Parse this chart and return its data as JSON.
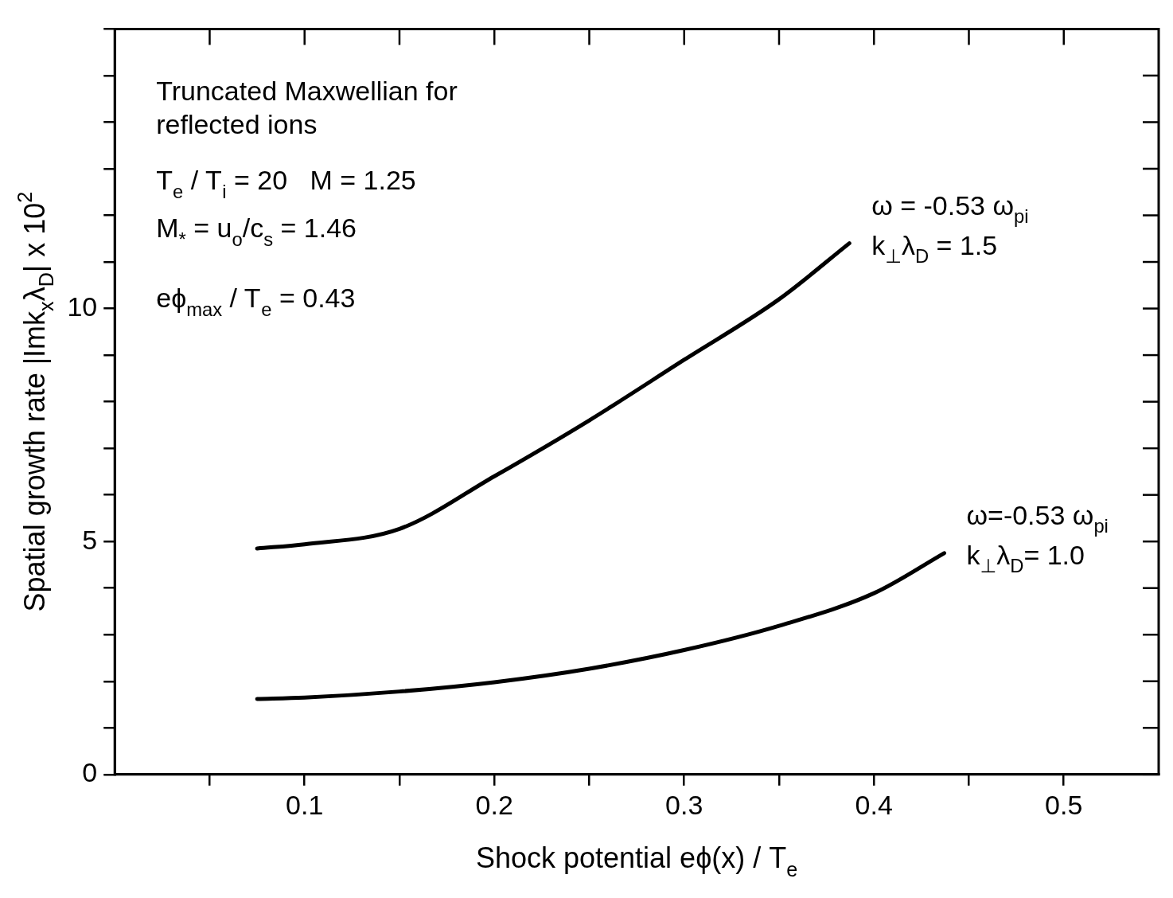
{
  "chart_data": {
    "type": "line",
    "xlabel": "Shock potential eϕ(x) / T$_{e}$",
    "ylabel": "Spatial growth rate |Imk$_{x}$λ$_{D}$| x 10$^{2}$",
    "annotations": [
      "Truncated Maxwellian for",
      "reflected ions",
      "T$_{e}$ / T$_{i}$ = 20   M = 1.25",
      "M$_{*}$ = u$_{o}$/c$_{s}$ = 1.46",
      "eϕ$_{max}$ / T$_{e}$ = 0.43"
    ],
    "series": [
      {
        "name": "ω = -0.53 ω$_{pi}$ k$_{⊥}$λ$_{D}$ = 1.5",
        "color": "#000000",
        "x": [
          0.075,
          0.1,
          0.15,
          0.2,
          0.25,
          0.3,
          0.35,
          0.387
        ],
        "values": [
          4.85,
          4.94,
          5.27,
          6.4,
          7.6,
          8.9,
          10.2,
          11.4
        ]
      },
      {
        "name": "ω=-0.53 ω$_{pi}$ k$_{⊥}$λ$_{D}$= 1.0",
        "color": "#000000",
        "x": [
          0.075,
          0.1,
          0.15,
          0.2,
          0.25,
          0.3,
          0.35,
          0.4,
          0.437
        ],
        "values": [
          1.62,
          1.65,
          1.78,
          1.98,
          2.27,
          2.67,
          3.19,
          3.89,
          4.75
        ]
      }
    ],
    "xlim": [
      0,
      0.55
    ],
    "xticks": [
      {
        "value": 0.05,
        "label": null
      },
      0.1,
      {
        "value": 0.15,
        "label": null
      },
      0.2,
      {
        "value": 0.25,
        "label": null
      },
      0.3,
      {
        "value": 0.35,
        "label": null
      },
      0.4,
      {
        "value": 0.45,
        "label": null
      },
      0.5
    ],
    "ylim": [
      0,
      16
    ],
    "yticks": [
      0,
      {
        "value": 1,
        "label": null
      },
      {
        "value": 2,
        "label": null
      },
      {
        "value": 3,
        "label": null
      },
      {
        "value": 4,
        "label": null
      },
      5,
      {
        "value": 6,
        "label": null
      },
      {
        "value": 7,
        "label": null
      },
      {
        "value": 8,
        "label": null
      },
      {
        "value": 9,
        "label": null
      },
      10,
      {
        "value": 11,
        "label": null
      },
      {
        "value": 12,
        "label": null
      },
      {
        "value": 13,
        "label": null
      },
      {
        "value": 14,
        "label": null
      },
      {
        "value": 15,
        "label": null
      },
      {
        "value": 16,
        "label": null
      }
    ],
    "grid": false,
    "legend": false,
    "marker": "none",
    "line_style": "solid"
  }
}
